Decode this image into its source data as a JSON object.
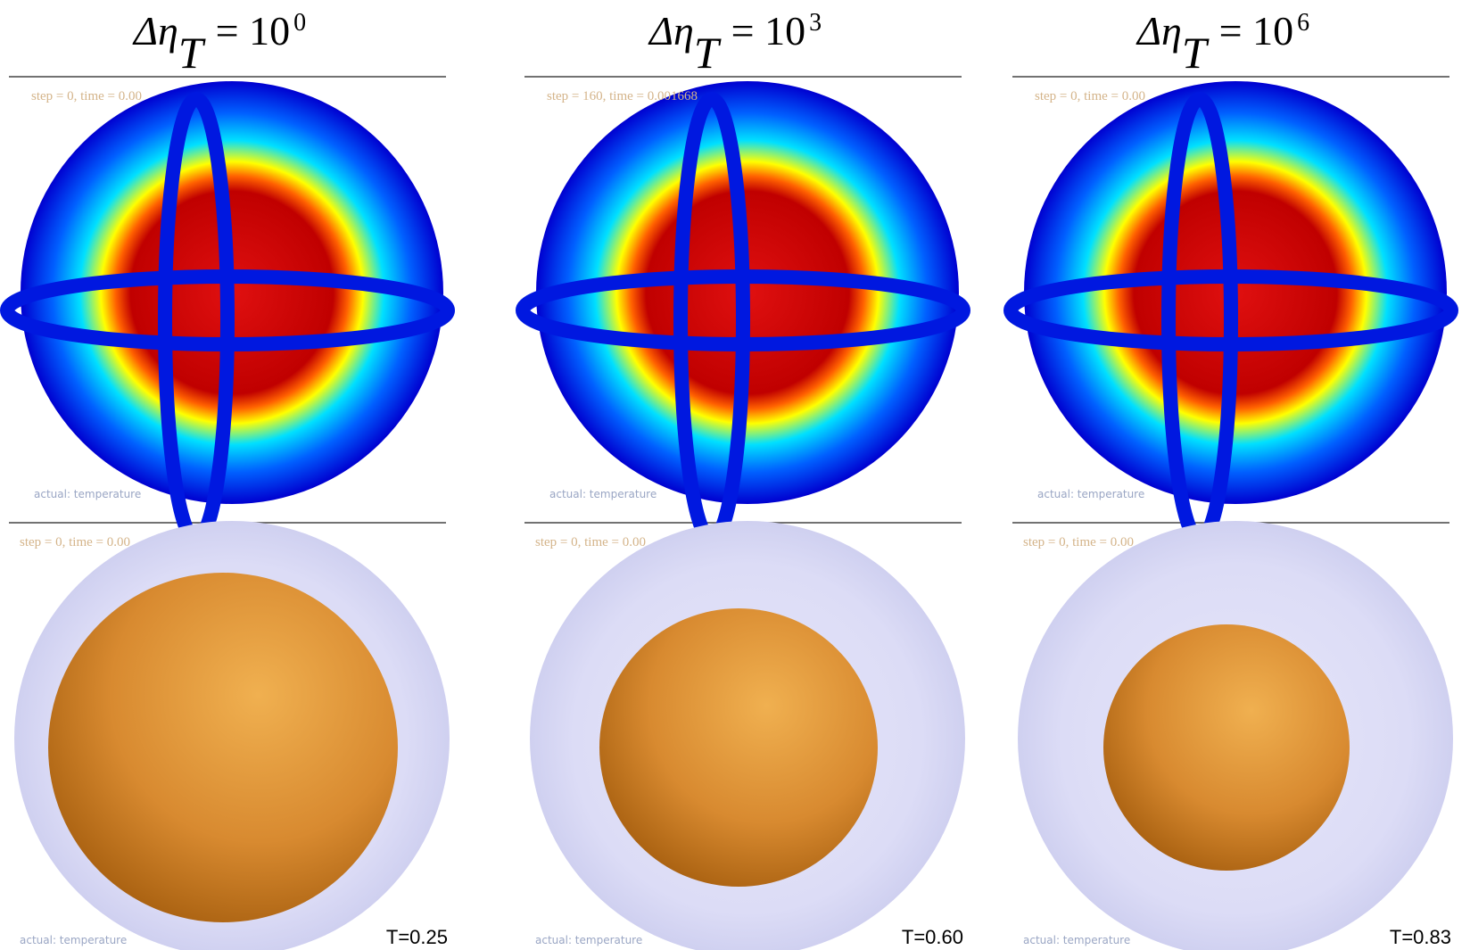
{
  "panels": [
    {
      "title": {
        "symbol": "Δη",
        "subscript": "T",
        "base": "= 10",
        "exponent": "0"
      },
      "top": {
        "status": "step = 0, time = 0.00",
        "field": "actual: temperature"
      },
      "bottom": {
        "status": "step = 0, time = 0.00",
        "field": "actual: temperature",
        "label": "T=0.25"
      }
    },
    {
      "title": {
        "symbol": "Δη",
        "subscript": "T",
        "base": "= 10",
        "exponent": "3"
      },
      "top": {
        "status": "step = 160, time = 0.001668",
        "field": "actual: temperature"
      },
      "bottom": {
        "status": "step = 0, time = 0.00",
        "field": "actual: temperature",
        "label": "T=0.60"
      }
    },
    {
      "title": {
        "symbol": "Δη",
        "subscript": "T",
        "base": "= 10",
        "exponent": "6"
      },
      "top": {
        "status": "step = 0, time = 0.00",
        "field": "actual: temperature"
      },
      "bottom": {
        "status": "step = 0, time = 0.00",
        "field": "actual: temperature",
        "label": "T=0.83"
      }
    }
  ]
}
